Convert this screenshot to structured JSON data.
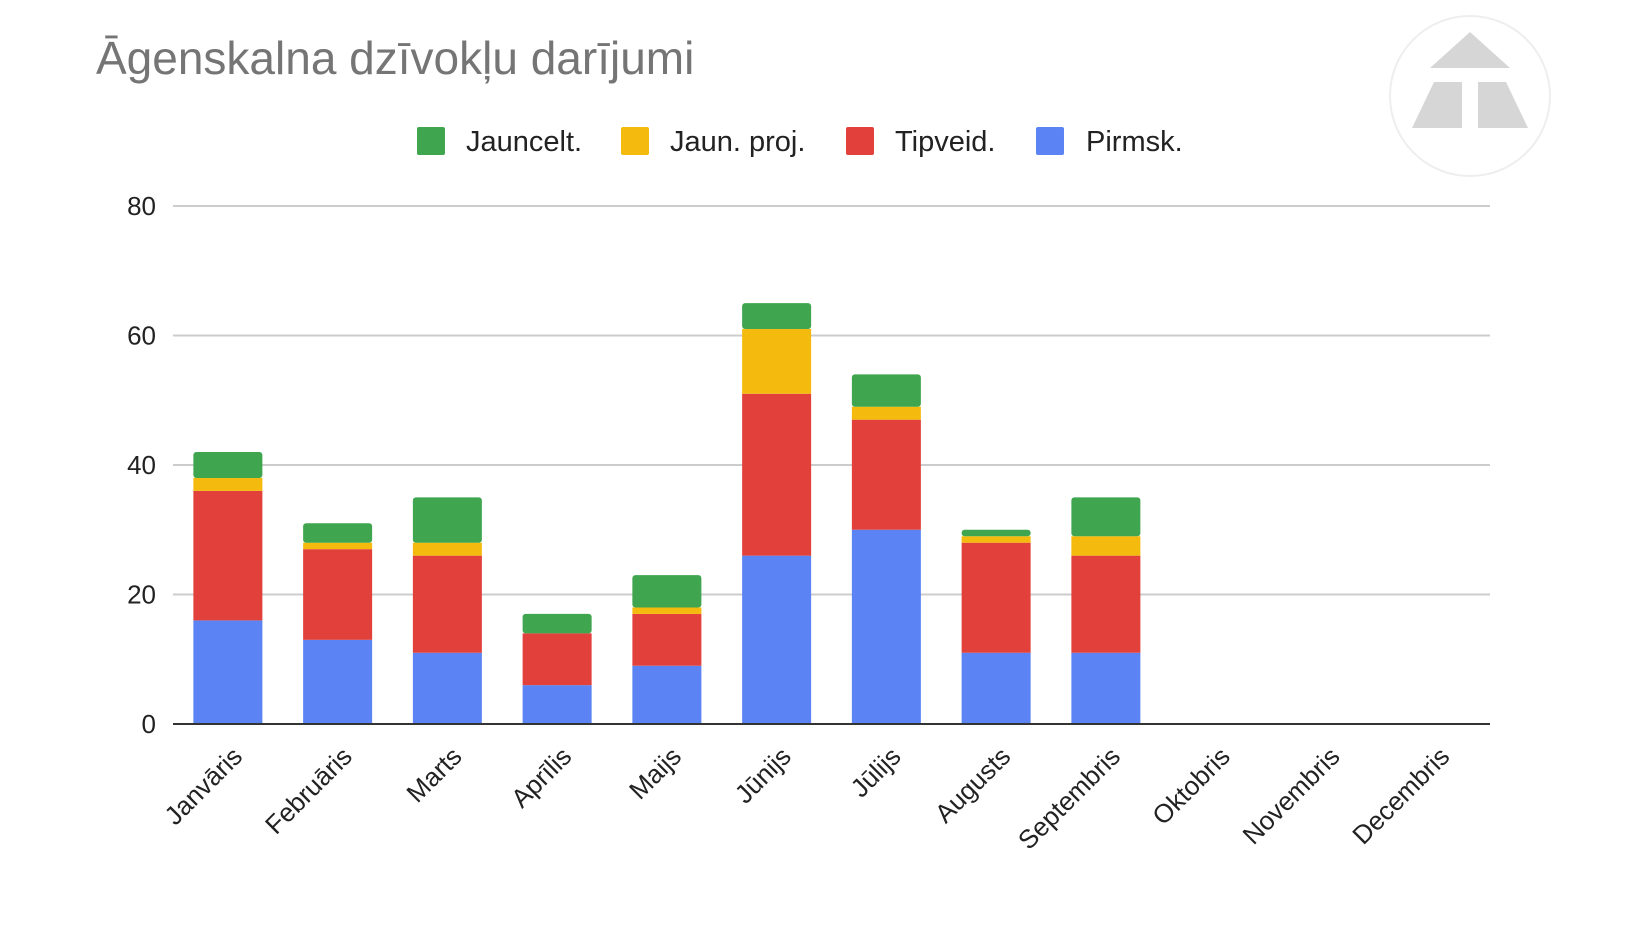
{
  "chart_data": {
    "type": "bar",
    "stacked": true,
    "title": "Āgenskalna dzīvokļu darījumi",
    "categories": [
      "Janvāris",
      "Februāris",
      "Marts",
      "Aprīlis",
      "Maijs",
      "Jūnijs",
      "Jūlijs",
      "Augusts",
      "Septembris",
      "Oktobris",
      "Novembris",
      "Decembris"
    ],
    "series": [
      {
        "name": "Pirmsk.",
        "color": "#5b83f3",
        "values": [
          16,
          13,
          11,
          6,
          9,
          26,
          30,
          11,
          11,
          0,
          0,
          0
        ]
      },
      {
        "name": "Tipveid.",
        "color": "#e2403b",
        "values": [
          20,
          14,
          15,
          8,
          8,
          25,
          17,
          17,
          15,
          0,
          0,
          0
        ]
      },
      {
        "name": "Jaun. proj.",
        "color": "#f4bb0e",
        "values": [
          2,
          1,
          2,
          0,
          1,
          10,
          2,
          1,
          3,
          0,
          0,
          0
        ]
      },
      {
        "name": "Jauncelt.",
        "color": "#3fa54f",
        "values": [
          4,
          3,
          7,
          3,
          5,
          4,
          5,
          1,
          6,
          0,
          0,
          0
        ]
      }
    ],
    "legend_order": [
      "Jauncelt.",
      "Jaun. proj.",
      "Tipveid.",
      "Pirmsk."
    ],
    "ylim": [
      0,
      80
    ],
    "yticks": [
      0,
      20,
      40,
      60,
      80
    ],
    "grid": true,
    "legend_position": "top-center",
    "logo": "triangle-logo-icon"
  }
}
